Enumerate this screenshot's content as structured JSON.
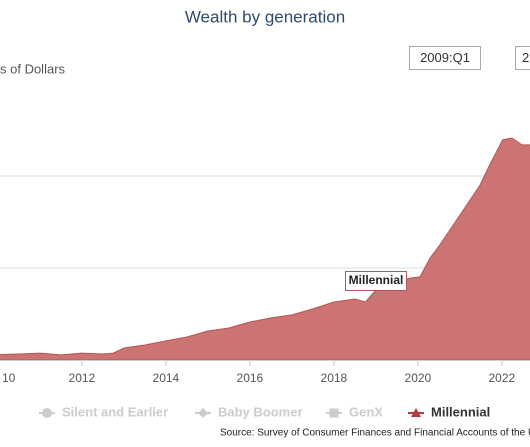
{
  "chart_data": {
    "type": "area",
    "title": "Wealth by generation",
    "y_label": "s of Dollars",
    "tooltips": [
      "2009:Q1",
      "2"
    ],
    "x": [
      2009.75,
      2010.5,
      2011,
      2011.5,
      2012,
      2012.5,
      2012.75,
      2013,
      2013.5,
      2014,
      2014.5,
      2015,
      2015.5,
      2016,
      2016.5,
      2017,
      2017.5,
      2018,
      2018.5,
      2018.75,
      2019,
      2019.5,
      2019.81,
      2020.05,
      2020.29,
      2020.52,
      2021,
      2021.48,
      2021.71,
      2022.02,
      2022.24,
      2022.48,
      2022.75
    ],
    "series": [
      {
        "name": "Millennial",
        "color": "#c96c6b",
        "label": "Millennial",
        "values": [
          0.22,
          0.26,
          0.3,
          0.22,
          0.3,
          0.26,
          0.3,
          0.52,
          0.65,
          0.83,
          1.0,
          1.26,
          1.39,
          1.65,
          1.83,
          1.96,
          2.22,
          2.52,
          2.65,
          2.52,
          3.04,
          3.39,
          3.56,
          3.61,
          4.43,
          5.0,
          6.3,
          7.6,
          8.48,
          9.57,
          9.65,
          9.35,
          9.35
        ]
      }
    ],
    "legend": [
      {
        "name": "Silent and Earlier",
        "color": "#cccccc"
      },
      {
        "name": "Baby Boomer",
        "color": "#cccccc"
      },
      {
        "name": "GenX",
        "color": "#cccccc"
      },
      {
        "name": "Millennial",
        "color": "#b83b3b"
      }
    ],
    "xlim": [
      2010.05,
      2022.67
    ],
    "xticks": [
      {
        "value": 2010,
        "label": "10"
      },
      2012,
      2014,
      2016,
      2018,
      2020,
      2022
    ],
    "ylim": [
      0,
      14.43
    ],
    "yticks": [
      0,
      4,
      8
    ],
    "grid": true,
    "source": "Source: Survey of Consumer Finances and Financial Accounts of the U"
  }
}
